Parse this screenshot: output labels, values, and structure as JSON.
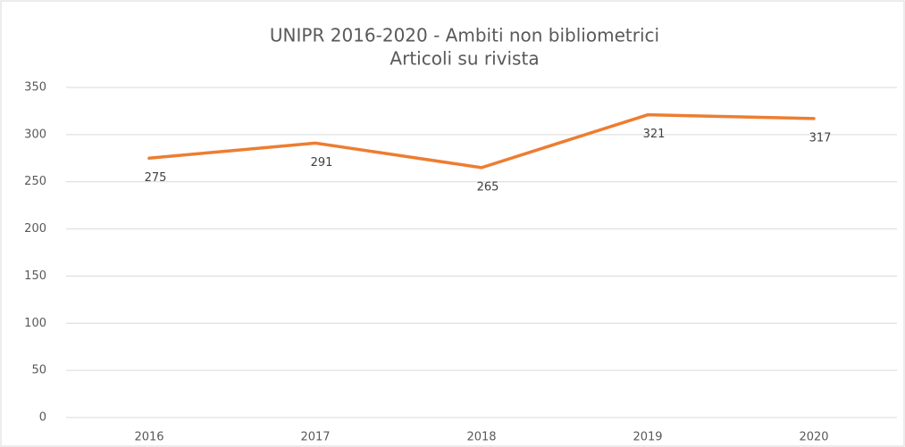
{
  "chart_data": {
    "type": "line",
    "title": "UNIPR 2016-2020 - Ambiti non bibliometrici",
    "subtitle": "Articoli su rivista",
    "categories": [
      "2016",
      "2017",
      "2018",
      "2019",
      "2020"
    ],
    "series": [
      {
        "name": "Articoli su rivista",
        "color": "#ed7d31",
        "values": [
          275,
          291,
          265,
          321,
          317
        ]
      }
    ],
    "ylim": [
      0,
      350
    ],
    "yticks": [
      0,
      50,
      100,
      150,
      200,
      250,
      300,
      350
    ],
    "grid": true
  }
}
